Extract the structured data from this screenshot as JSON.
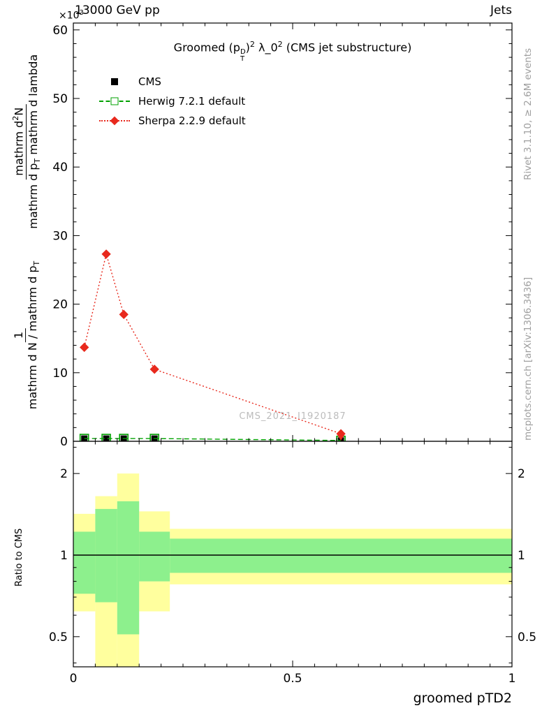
{
  "header": {
    "scale_prefix": "×10",
    "scale_exp": "3",
    "beam": "13000 GeV pp",
    "topic": "Jets"
  },
  "plot_title": {
    "part1": "Groomed (p",
    "p_sup": "D",
    "p_sub": "T",
    "part2": ")",
    "exp1": "2",
    "part3": " λ_0",
    "exp2": "2",
    "part4": " (CMS jet substructure)"
  },
  "legend": {
    "items": [
      {
        "label": "CMS"
      },
      {
        "label": "Herwig 7.2.1 default"
      },
      {
        "label": "Sherpa 2.2.9 default"
      }
    ]
  },
  "ylabel": {
    "frac1_num": "1",
    "frac1_den_a": "mathrm d N / mathrm d p",
    "frac1_den_sub": "T",
    "frac2_num_a": "mathrm d",
    "frac2_num_sup": "2",
    "frac2_num_b": "N",
    "frac2_den_a": "mathrm d p",
    "frac2_den_sub": "T",
    "frac2_den_b": " mathrm d lambda"
  },
  "watermark": "CMS_2021_I1920187",
  "side": {
    "rivet": "Rivet 3.1.10, ≥ 2.6M events",
    "mcplots": "mcplots.cern.ch [arXiv:1306.3436]"
  },
  "ratio": {
    "ylabel": "Ratio to CMS"
  },
  "xaxis": {
    "label": "groomed pTD2"
  },
  "colors": {
    "cms": "#000000",
    "herwig": "#00a000",
    "sherpa": "#e8291d",
    "band_yellow": "#ffff9e",
    "band_green": "#8df08d",
    "gray_text": "#9f9f9f",
    "watermark": "#bcbcbc"
  },
  "chart_data": {
    "type": "line",
    "title": "Groomed (p_T^D)^2 lambda_0^2 (CMS jet substructure)",
    "xlabel": "groomed pTD2",
    "ylabel": "1/(dN/dp_T) d^2N/(dp_T dlambda)",
    "y_scale_label": "×10^3",
    "main_panel": {
      "xlim": [
        0,
        1
      ],
      "ylim": [
        0,
        61
      ],
      "x_major_ticks": [
        {
          "v": 0,
          "label": "0"
        },
        {
          "v": 0.5,
          "label": "0.5"
        },
        {
          "v": 1,
          "label": "1"
        }
      ],
      "x_minor_step": 0.05,
      "y_major_step": 10,
      "y_minor_step": 2,
      "series": [
        {
          "name": "CMS",
          "color_key": "cms",
          "marker": "square",
          "size": 9,
          "x": [
            0.025,
            0.075,
            0.115,
            0.185,
            0.61
          ],
          "y": [
            0.4,
            0.4,
            0.4,
            0.4,
            0.12
          ]
        },
        {
          "name": "Herwig 7.2.1 default",
          "color_key": "herwig",
          "marker": "square-open",
          "size": 12,
          "dash": "7,4",
          "x": [
            0.025,
            0.075,
            0.115,
            0.185,
            0.61
          ],
          "y": [
            0.4,
            0.4,
            0.4,
            0.4,
            0.12
          ]
        },
        {
          "name": "Sherpa 2.2.9 default",
          "color_key": "sherpa",
          "marker": "diamond",
          "size": 10,
          "dash": "2,3",
          "x": [
            0.025,
            0.075,
            0.115,
            0.185,
            0.61
          ],
          "y": [
            13.7,
            27.3,
            18.5,
            10.5,
            1.1
          ],
          "last_arrow_down": true
        }
      ]
    },
    "ratio_panel": {
      "log": true,
      "ylim": [
        0.387,
        2.63
      ],
      "y_major_ticks": [
        {
          "v": 0.5,
          "label": "0.5"
        },
        {
          "v": 1,
          "label": "1"
        },
        {
          "v": 2,
          "label": "2"
        }
      ],
      "y_minor_ticks": [
        0.4,
        0.6,
        0.7,
        0.8,
        0.9,
        2.5
      ],
      "reference_line": 1,
      "bands": [
        {
          "name": "data-uncertainty-yellow",
          "color_key": "band_yellow",
          "bins": [
            [
              0,
              0.05,
              0.62,
              1.42
            ],
            [
              0.05,
              0.1,
              0.35,
              1.65
            ],
            [
              0.1,
              0.15,
              0.35,
              2.0
            ],
            [
              0.15,
              0.22,
              0.62,
              1.45
            ],
            [
              0.22,
              1.0,
              0.78,
              1.25
            ]
          ]
        },
        {
          "name": "mc-uncertainty-green",
          "color_key": "band_green",
          "bins": [
            [
              0,
              0.05,
              0.72,
              1.22
            ],
            [
              0.05,
              0.1,
              0.67,
              1.48
            ],
            [
              0.1,
              0.15,
              0.51,
              1.58
            ],
            [
              0.15,
              0.22,
              0.8,
              1.22
            ],
            [
              0.22,
              1.0,
              0.86,
              1.15
            ]
          ]
        }
      ]
    }
  }
}
